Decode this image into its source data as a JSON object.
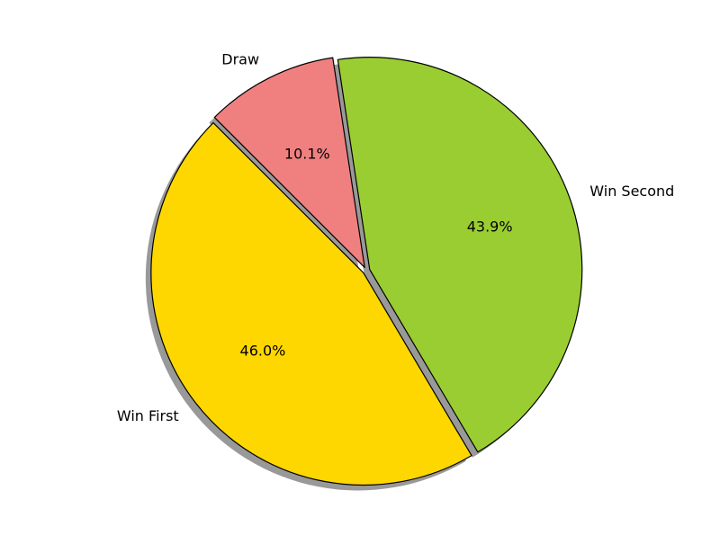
{
  "chart_data": {
    "type": "pie",
    "title": "",
    "categories": [
      "Win First",
      "Win Second",
      "Draw"
    ],
    "values": [
      46.0,
      43.9,
      10.1
    ],
    "value_labels": [
      "46.0%",
      "43.9%",
      "10.1%"
    ],
    "colors": [
      "#FFD700",
      "#9ACD32",
      "#F08080"
    ],
    "edge_color": "#000000",
    "shadow": true,
    "exploded": true,
    "legend": "none"
  }
}
